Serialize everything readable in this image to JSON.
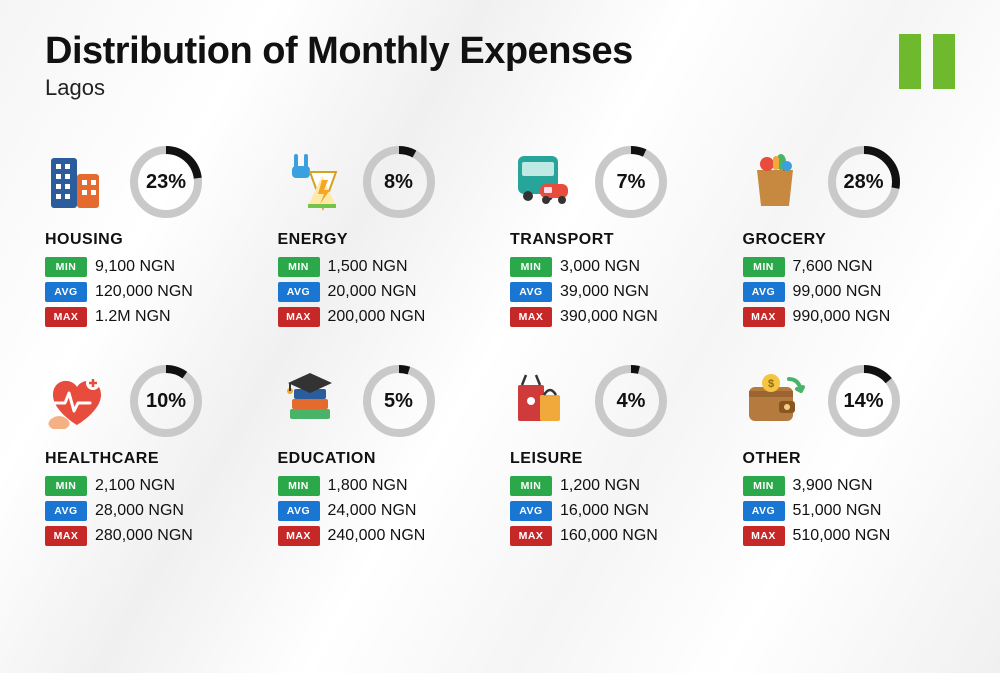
{
  "title": "Distribution of Monthly Expenses",
  "subtitle": "Lagos",
  "flag_bar_color": "#6fb92f",
  "donut": {
    "ring_color": "#c9c9c9",
    "fill_color": "#111111",
    "stroke_width": 8,
    "radius": 32,
    "size": 78
  },
  "badges": {
    "min": {
      "label": "MIN",
      "bg": "#2aa84a"
    },
    "avg": {
      "label": "AVG",
      "bg": "#1976d2"
    },
    "max": {
      "label": "MAX",
      "bg": "#c62828"
    }
  },
  "categories": [
    {
      "name": "HOUSING",
      "pct": 23,
      "pct_label": "23%",
      "min": "9,100 NGN",
      "avg": "120,000 NGN",
      "max": "1.2M NGN",
      "icon": "buildings"
    },
    {
      "name": "ENERGY",
      "pct": 8,
      "pct_label": "8%",
      "min": "1,500 NGN",
      "avg": "20,000 NGN",
      "max": "200,000 NGN",
      "icon": "energy"
    },
    {
      "name": "TRANSPORT",
      "pct": 7,
      "pct_label": "7%",
      "min": "3,000 NGN",
      "avg": "39,000 NGN",
      "max": "390,000 NGN",
      "icon": "bus"
    },
    {
      "name": "GROCERY",
      "pct": 28,
      "pct_label": "28%",
      "min": "7,600 NGN",
      "avg": "99,000 NGN",
      "max": "990,000 NGN",
      "icon": "grocery"
    },
    {
      "name": "HEALTHCARE",
      "pct": 10,
      "pct_label": "10%",
      "min": "2,100 NGN",
      "avg": "28,000 NGN",
      "max": "280,000 NGN",
      "icon": "healthcare"
    },
    {
      "name": "EDUCATION",
      "pct": 5,
      "pct_label": "5%",
      "min": "1,800 NGN",
      "avg": "24,000 NGN",
      "max": "240,000 NGN",
      "icon": "education"
    },
    {
      "name": "LEISURE",
      "pct": 4,
      "pct_label": "4%",
      "min": "1,200 NGN",
      "avg": "16,000 NGN",
      "max": "160,000 NGN",
      "icon": "leisure"
    },
    {
      "name": "OTHER",
      "pct": 14,
      "pct_label": "14%",
      "min": "3,900 NGN",
      "avg": "51,000 NGN",
      "max": "510,000 NGN",
      "icon": "wallet"
    }
  ],
  "icons": {
    "buildings": {
      "primary": "#2b5c9b",
      "accent": "#e46a2e"
    },
    "energy": {
      "primary": "#ffc93c",
      "accent": "#3aa0e0"
    },
    "bus": {
      "primary": "#27a59a",
      "accent": "#e74c3c"
    },
    "grocery": {
      "primary": "#c6893f",
      "accent": "#e74c3c"
    },
    "healthcare": {
      "primary": "#e74c3c",
      "accent": "#f4b183"
    },
    "education": {
      "primary": "#2b5c9b",
      "accent": "#e46a2e"
    },
    "leisure": {
      "primary": "#cf3a3a",
      "accent": "#f2a93c"
    },
    "wallet": {
      "primary": "#b57a3e",
      "accent": "#49b36a"
    }
  }
}
